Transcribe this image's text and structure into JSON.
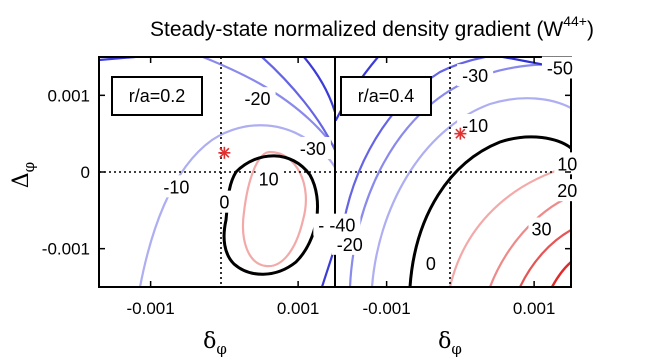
{
  "chart_data": {
    "type": "contour",
    "title": {
      "main": "Steady-state normalized density gradient (W",
      "superscript": "44+",
      "close": ")"
    },
    "xlabel": {
      "symbol": "δ",
      "subscript": "φ"
    },
    "ylabel": {
      "symbol": "Δ",
      "subscript": "φ"
    },
    "xlim": [
      -0.0017,
      0.0015
    ],
    "ylim": [
      -0.0015,
      0.0015
    ],
    "x_ticks": [
      {
        "value": -0.001,
        "label": "-0.001"
      },
      {
        "value": 0.001,
        "label": "0.001"
      }
    ],
    "y_ticks": [
      {
        "value": 0.001,
        "label": "0.001"
      },
      {
        "value": 0,
        "label": "0"
      },
      {
        "value": -0.001,
        "label": "-0.001"
      }
    ],
    "colors": {
      "negative_strong": "#2f2fd6",
      "negative_mid": "#5f5fe6",
      "negative_light": "#aeaef2",
      "zero": "#000000",
      "positive_light": "#f4a9a9",
      "positive_mid": "#ea7676",
      "positive_strong": "#e02a2a",
      "marker": "#e03030"
    },
    "panels": [
      {
        "label": "r/a=0.2",
        "marker": {
          "x": 0.0,
          "y": 0.00025
        },
        "contour_labels": [
          {
            "text": "-20",
            "x": 0.00045,
            "y": 0.00095
          },
          {
            "text": "-30",
            "x": 0.0012,
            "y": 0.0003
          },
          {
            "text": "10",
            "x": 0.0006,
            "y": -0.0001
          },
          {
            "text": "0",
            "x": 0.0,
            "y": -0.0004
          },
          {
            "text": "-10",
            "x": -0.00065,
            "y": -0.0002
          },
          {
            "text": "-40",
            "x": 0.00145,
            "y": -0.0007
          }
        ]
      },
      {
        "label": "r/a=0.4",
        "marker": {
          "x": 0.0,
          "y": 0.0005
        },
        "contour_labels": [
          {
            "text": "-50",
            "x": 0.00135,
            "y": 0.00135
          },
          {
            "text": "-30",
            "x": 0.0002,
            "y": 0.00125
          },
          {
            "text": "-10",
            "x": 0.0002,
            "y": 0.0006
          },
          {
            "text": "10",
            "x": 0.00145,
            "y": 0.0001
          },
          {
            "text": "20",
            "x": 0.00145,
            "y": -0.00025
          },
          {
            "text": "30",
            "x": 0.0011,
            "y": -0.00075
          },
          {
            "text": "0",
            "x": -0.0004,
            "y": -0.0012
          },
          {
            "text": "-20",
            "x": -0.0015,
            "y": -0.00095
          },
          {
            "text": "-40",
            "x": -0.0016,
            "y": -0.0007
          }
        ]
      }
    ]
  }
}
